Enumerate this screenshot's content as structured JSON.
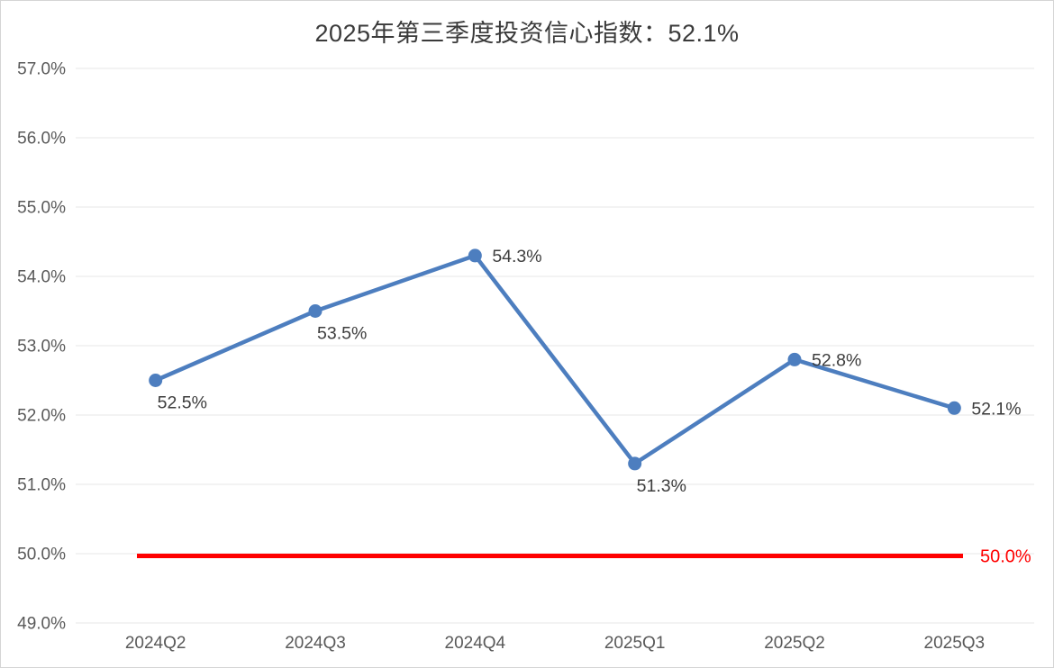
{
  "chart_data": {
    "type": "line",
    "title": "2025年第三季度投资信心指数：52.1%",
    "categories": [
      "2024Q2",
      "2024Q3",
      "2024Q4",
      "2025Q1",
      "2025Q2",
      "2025Q3"
    ],
    "values": [
      52.5,
      53.5,
      54.3,
      51.3,
      52.8,
      52.1
    ],
    "point_labels": [
      "52.5%",
      "53.5%",
      "54.3%",
      "51.3%",
      "52.8%",
      "52.1%"
    ],
    "point_label_positions": [
      "below",
      "below",
      "right",
      "below",
      "right",
      "right"
    ],
    "xlabel": "",
    "ylabel": "",
    "ylim": [
      49.0,
      57.0
    ],
    "ytick_step": 1.0,
    "ytick_labels": [
      "49.0%",
      "50.0%",
      "51.0%",
      "52.0%",
      "53.0%",
      "54.0%",
      "55.0%",
      "56.0%",
      "57.0%"
    ],
    "grid": true,
    "legend": false,
    "reference_line": {
      "value": 50.0,
      "label": "50.0%"
    },
    "colors": {
      "series_line": "#4d7ebf",
      "marker": "#4d7ebf",
      "reference_line": "#ff0000",
      "reference_label": "#ff0000",
      "reference_shadow": "#9fb2dd",
      "grid_line": "#e7e7e7",
      "axis_text": "#595959",
      "data_label": "#3d3d3d",
      "title_text": "#3a3a3a",
      "card_border": "#d5d5d5",
      "background": "#ffffff"
    }
  }
}
